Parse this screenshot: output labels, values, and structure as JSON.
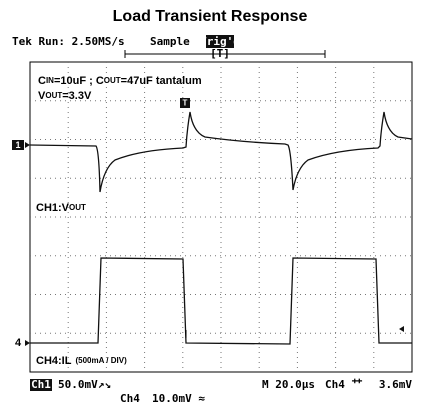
{
  "title": "Load Transient Response",
  "header": {
    "run": "Tek Run: 2.50MS/s",
    "mode": "Sample",
    "trigger": "Trig'd",
    "trigger_position": "[T]"
  },
  "markers": {
    "ch1": "1",
    "ch4": "4",
    "trigger": "T"
  },
  "annotations": {
    "caps": [
      "C",
      "IN",
      "=10uF ; C",
      "OUT",
      "=47uF tantalum"
    ],
    "vout": [
      "V",
      "OUT",
      "=3.3V"
    ],
    "ch1": [
      "CH1:V",
      "OUT"
    ],
    "ch4": [
      "CH4:IL",
      "(500mA / DIV)"
    ]
  },
  "footer": {
    "ch1": "Ch1",
    "ch1_scale": "50.0mV↗↘",
    "ch4": "Ch4",
    "ch4_scale": "10.0mV ≈",
    "timebase": "M 20.0µs",
    "trigger_source": "Ch4 ⺿",
    "trigger_level": "3.6mV"
  }
}
